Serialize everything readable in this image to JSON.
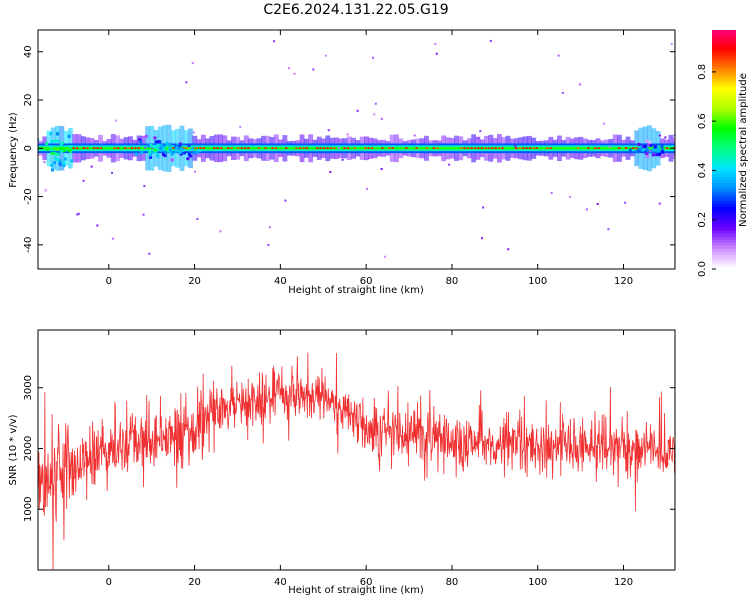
{
  "figure_title": "C2E6.2024.131.22.05.G19",
  "chart_data": [
    {
      "type": "heatmap",
      "xlabel": "Height of straight line (km)",
      "ylabel": "Frequency (Hz)",
      "xlim": [
        -16.5,
        132
      ],
      "ylim": [
        -50,
        49
      ],
      "xticks": [
        0,
        20,
        40,
        60,
        80,
        100,
        120
      ],
      "yticks": [
        -40,
        -20,
        0,
        20,
        40
      ],
      "colorbar": {
        "label": "Normalized spectral amplitude",
        "ticks": [
          0.0,
          0.2,
          0.4,
          0.6,
          0.8
        ],
        "tick_labels": [
          "0.0",
          "0.2",
          "0.4",
          "0.6",
          "0.8"
        ],
        "range": [
          0,
          0.97
        ],
        "colors": [
          "#ffffff",
          "#cc88ff",
          "#6a00ff",
          "#0000ff",
          "#0090ff",
          "#00e5ff",
          "#00ff80",
          "#00ff00",
          "#b0ff00",
          "#ffff00",
          "#ff8000",
          "#ff0000",
          "#ff0080"
        ]
      },
      "band": {
        "center_hz": 0,
        "half_width_hz": 2
      },
      "bursts": [
        {
          "x": -12,
          "amplitude": 0.55,
          "spread_hz": 8
        },
        {
          "x": 11,
          "amplitude": 0.5,
          "spread_hz": 4
        },
        {
          "x": 16,
          "amplitude": 0.45,
          "spread_hz": 3
        },
        {
          "x": 125,
          "amplitude": 0.35,
          "spread_hz": 3
        }
      ],
      "grid": false
    },
    {
      "type": "line",
      "xlabel": "Height of straight line (km)",
      "ylabel": "SNR (10 * v/v)",
      "xlim": [
        -16.5,
        132
      ],
      "ylim": [
        0,
        3950
      ],
      "xticks": [
        0,
        20,
        40,
        60,
        80,
        100,
        120
      ],
      "yticks": [
        1000,
        2000,
        3000
      ],
      "series_color": "#f03030",
      "trend": {
        "x": [
          -16,
          -10,
          0,
          10,
          18,
          25,
          40,
          50,
          60,
          80,
          100,
          120,
          132
        ],
        "y": [
          1400,
          1700,
          2000,
          2150,
          2250,
          2600,
          2900,
          2900,
          2350,
          2150,
          2050,
          2000,
          2000
        ]
      },
      "noise_amplitude": [
        {
          "x": -16,
          "y": 700
        },
        {
          "x": 0,
          "y": 450
        },
        {
          "x": 20,
          "y": 400
        },
        {
          "x": 50,
          "y": 350
        },
        {
          "x": 70,
          "y": 450
        },
        {
          "x": 132,
          "y": 400
        }
      ],
      "grid": false
    }
  ]
}
